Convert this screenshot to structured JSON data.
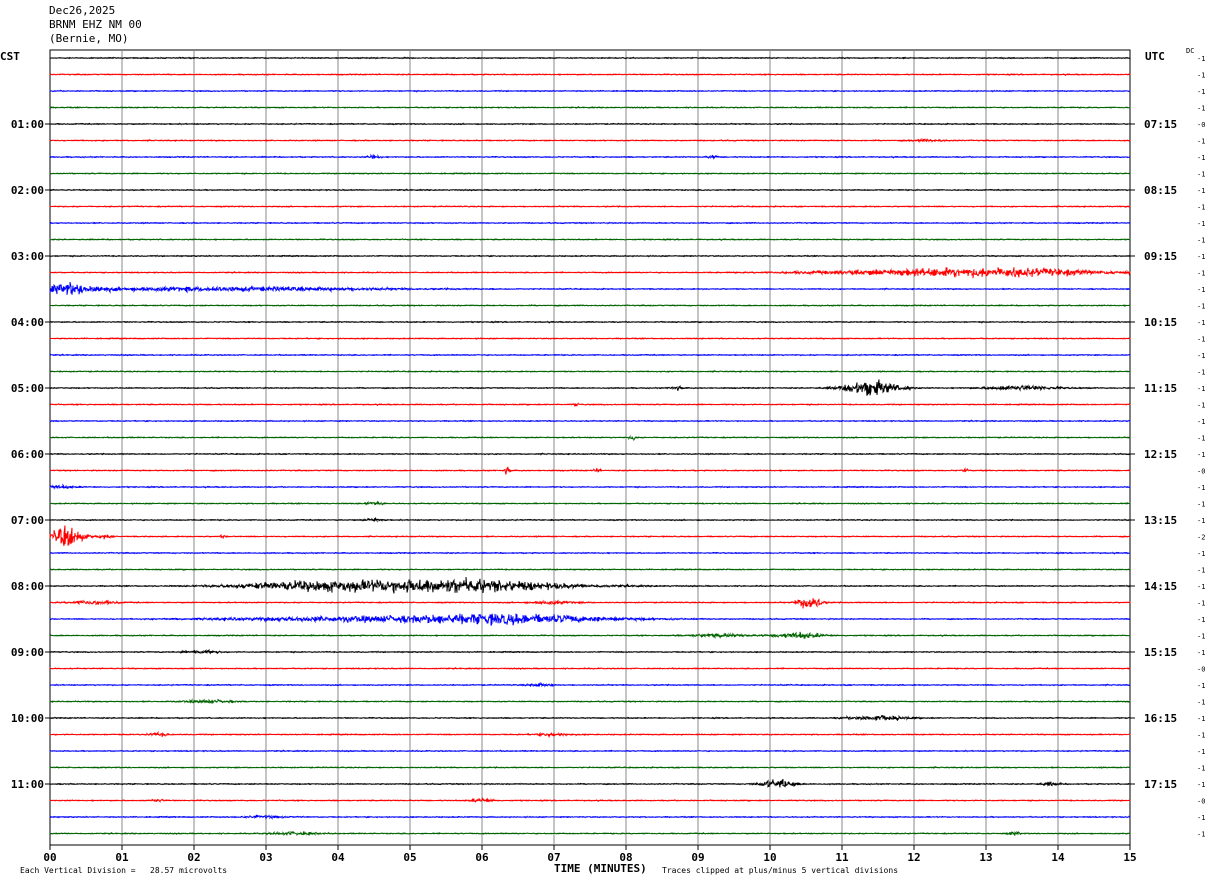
{
  "header": {
    "date": "Dec26,2025",
    "station": "BRNM EHZ NM 00",
    "location": "(Bernie, MO)"
  },
  "labels": {
    "left_timezone": "CST",
    "right_timezone": "UTC",
    "dc": "DC",
    "footer_left": "Each Vertical Division =   28.57 microvolts",
    "footer_right": "Traces clipped at plus/minus 5 vertical divisions"
  },
  "chart_data": {
    "type": "line",
    "title": "",
    "xlabel": "TIME (MINUTES)",
    "ylabel": "",
    "xlim": [
      0,
      15
    ],
    "x_ticks": [
      "00",
      "01",
      "02",
      "03",
      "04",
      "05",
      "06",
      "07",
      "08",
      "09",
      "10",
      "11",
      "12",
      "13",
      "14",
      "15"
    ],
    "grid": true,
    "trace_count": 48,
    "trace_colors": [
      "#000000",
      "#ff0000",
      "#0000ff",
      "#006400"
    ],
    "left_hour_labels": [
      {
        "trace": 4,
        "text": "01:00"
      },
      {
        "trace": 8,
        "text": "02:00"
      },
      {
        "trace": 12,
        "text": "03:00"
      },
      {
        "trace": 16,
        "text": "04:00"
      },
      {
        "trace": 20,
        "text": "05:00"
      },
      {
        "trace": 24,
        "text": "06:00"
      },
      {
        "trace": 28,
        "text": "07:00"
      },
      {
        "trace": 32,
        "text": "08:00"
      },
      {
        "trace": 36,
        "text": "09:00"
      },
      {
        "trace": 40,
        "text": "10:00"
      },
      {
        "trace": 44,
        "text": "11:00"
      }
    ],
    "right_hour_labels": [
      {
        "trace": 4,
        "text": "07:15"
      },
      {
        "trace": 8,
        "text": "08:15"
      },
      {
        "trace": 12,
        "text": "09:15"
      },
      {
        "trace": 16,
        "text": "10:15"
      },
      {
        "trace": 20,
        "text": "11:15"
      },
      {
        "trace": 24,
        "text": "12:15"
      },
      {
        "trace": 28,
        "text": "13:15"
      },
      {
        "trace": 32,
        "text": "14:15"
      },
      {
        "trace": 36,
        "text": "15:15"
      },
      {
        "trace": 40,
        "text": "16:15"
      },
      {
        "trace": 44,
        "text": "17:15"
      }
    ],
    "dc_offsets": [
      "-1",
      "-1",
      "-1",
      "-1",
      "-0",
      "-1",
      "-1",
      "-1",
      "-1",
      "-1",
      "-1",
      "-1",
      "-1",
      "-1",
      "-1",
      "-1",
      "-1",
      "-1",
      "-1",
      "-1",
      "-1",
      "-1",
      "-1",
      "-1",
      "-1",
      "-0",
      "-1",
      "-1",
      "-1",
      "-2",
      "-1",
      "-1",
      "-1",
      "-1",
      "-1",
      "-1",
      "-1",
      "-0",
      "-1",
      "-1",
      "-1",
      "-1",
      "-1",
      "-1",
      "-1",
      "-0",
      "-1",
      "-1"
    ],
    "events": [
      {
        "trace": 5,
        "minute": 12.2,
        "amp": 1.2,
        "width": 0.3
      },
      {
        "trace": 6,
        "minute": 4.5,
        "amp": 2.5,
        "width": 0.1
      },
      {
        "trace": 6,
        "minute": 9.2,
        "amp": 1.5,
        "width": 0.1
      },
      {
        "trace": 13,
        "minute": 13.2,
        "amp": 6,
        "width": 1.7
      },
      {
        "trace": 13,
        "minute": 11.5,
        "amp": 2.5,
        "width": 1.5
      },
      {
        "trace": 14,
        "minute": 0.3,
        "amp": 7,
        "width": 0.5
      },
      {
        "trace": 14,
        "minute": 2.5,
        "amp": 3,
        "width": 2.5
      },
      {
        "trace": 20,
        "minute": 11.4,
        "amp": 11,
        "width": 0.45
      },
      {
        "trace": 20,
        "minute": 13.5,
        "amp": 3,
        "width": 0.6
      },
      {
        "trace": 20,
        "minute": 8.7,
        "amp": 3,
        "width": 0.1
      },
      {
        "trace": 21,
        "minute": 7.3,
        "amp": 4,
        "width": 0.04
      },
      {
        "trace": 23,
        "minute": 8.1,
        "amp": 4,
        "width": 0.05
      },
      {
        "trace": 25,
        "minute": 6.35,
        "amp": 5,
        "width": 0.05
      },
      {
        "trace": 25,
        "minute": 7.6,
        "amp": 3,
        "width": 0.05
      },
      {
        "trace": 25,
        "minute": 12.7,
        "amp": 2.5,
        "width": 0.05
      },
      {
        "trace": 26,
        "minute": 0.1,
        "amp": 2,
        "width": 0.3
      },
      {
        "trace": 27,
        "minute": 4.5,
        "amp": 2.5,
        "width": 0.15
      },
      {
        "trace": 28,
        "minute": 4.5,
        "amp": 2,
        "width": 0.15
      },
      {
        "trace": 29,
        "minute": 0.25,
        "amp": 16,
        "width": 0.25
      },
      {
        "trace": 29,
        "minute": 0.75,
        "amp": 3,
        "width": 0.1
      },
      {
        "trace": 29,
        "minute": 2.4,
        "amp": 2.5,
        "width": 0.05
      },
      {
        "trace": 32,
        "minute": 5.5,
        "amp": 10,
        "width": 1.9
      },
      {
        "trace": 32,
        "minute": 3.5,
        "amp": 5,
        "width": 1.2
      },
      {
        "trace": 33,
        "minute": 10.55,
        "amp": 11,
        "width": 0.18
      },
      {
        "trace": 33,
        "minute": 0.6,
        "amp": 2.5,
        "width": 0.4
      },
      {
        "trace": 33,
        "minute": 7.0,
        "amp": 2,
        "width": 0.4
      },
      {
        "trace": 34,
        "minute": 6.3,
        "amp": 7,
        "width": 1.8
      },
      {
        "trace": 34,
        "minute": 4.0,
        "amp": 3,
        "width": 2.0
      },
      {
        "trace": 35,
        "minute": 10.4,
        "amp": 4,
        "width": 0.4
      },
      {
        "trace": 35,
        "minute": 9.3,
        "amp": 2,
        "width": 0.5
      },
      {
        "trace": 36,
        "minute": 2.1,
        "amp": 2,
        "width": 0.3
      },
      {
        "trace": 38,
        "minute": 6.8,
        "amp": 2,
        "width": 0.2
      },
      {
        "trace": 39,
        "minute": 2.2,
        "amp": 2,
        "width": 0.4
      },
      {
        "trace": 40,
        "minute": 11.5,
        "amp": 3,
        "width": 0.5
      },
      {
        "trace": 41,
        "minute": 1.5,
        "amp": 2,
        "width": 0.2
      },
      {
        "trace": 41,
        "minute": 7.0,
        "amp": 2,
        "width": 0.3
      },
      {
        "trace": 44,
        "minute": 10.1,
        "amp": 6,
        "width": 0.3
      },
      {
        "trace": 44,
        "minute": 13.9,
        "amp": 2.5,
        "width": 0.15
      },
      {
        "trace": 45,
        "minute": 1.5,
        "amp": 2,
        "width": 0.1
      },
      {
        "trace": 45,
        "minute": 6.0,
        "amp": 2.5,
        "width": 0.2
      },
      {
        "trace": 46,
        "minute": 3.0,
        "amp": 1.5,
        "width": 0.4
      },
      {
        "trace": 47,
        "minute": 3.4,
        "amp": 2,
        "width": 0.4
      },
      {
        "trace": 47,
        "minute": 13.4,
        "amp": 2,
        "width": 0.1
      }
    ]
  }
}
